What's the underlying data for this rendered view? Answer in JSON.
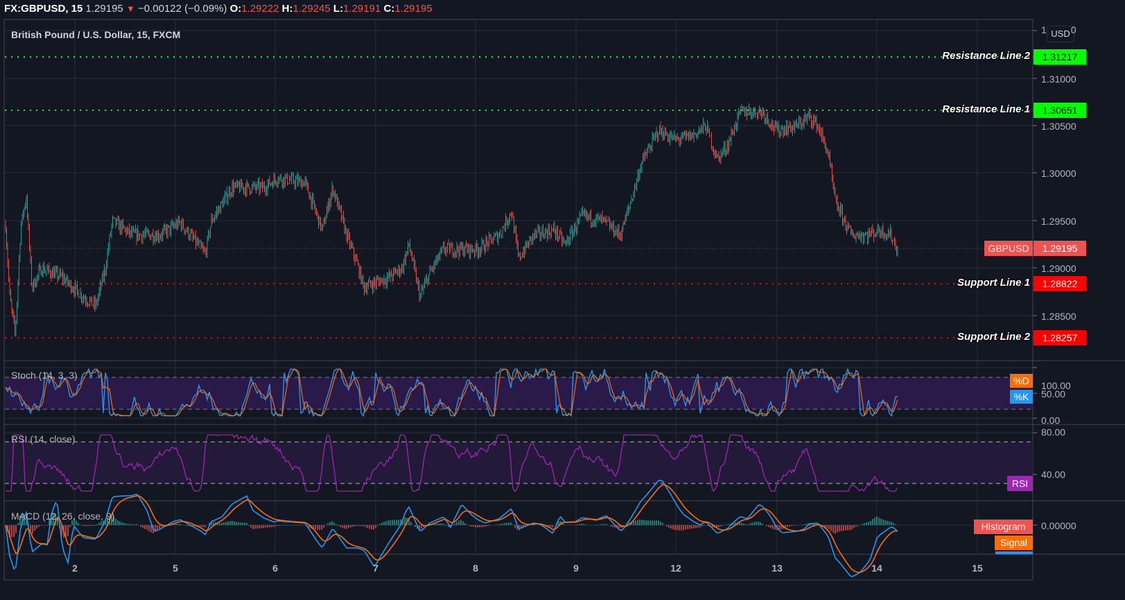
{
  "header": {
    "symbol": "FX:GBPUSD, 15",
    "last": "1.29195",
    "direction_icon": "▼",
    "change": "−0.00122 (−0.09%)",
    "open_label": "O:",
    "open": "1.29222",
    "high_label": "H:",
    "high": "1.29245",
    "low_label": "L:",
    "low": "1.29191",
    "close_label": "C:",
    "close": "1.29195"
  },
  "main_pane": {
    "title": "British Pound / U.S. Dollar, 15, FXCM",
    "currency_button": "USD",
    "y_ticks": [
      "1.31000",
      "1.30500",
      "1.30000",
      "1.29500",
      "1.29000",
      "1.28500"
    ],
    "top_tick_partial": "1",
    "top_tick_partial_end": "0",
    "price_tag": {
      "label": "GBPUSD",
      "value": "1.29195",
      "color": "#ef5350"
    },
    "levels": [
      {
        "label": "Resistance Line 2",
        "value": "1.31217",
        "color": "#00ff00"
      },
      {
        "label": "Resistance Line 1",
        "value": "1.30651",
        "color": "#00ff00"
      },
      {
        "label": "Support Line 1",
        "value": "1.28822",
        "color": "#ff0000"
      },
      {
        "label": "Support Line 2",
        "value": "1.28257",
        "color": "#ff0000"
      }
    ]
  },
  "stoch_pane": {
    "title": "Stoch (14, 3, 3)",
    "y_ticks": [
      "100.00",
      "50.00",
      "0.00"
    ],
    "tags": [
      {
        "label": "%D",
        "color": "#ff6d00"
      },
      {
        "label": "%K",
        "color": "#2196f3"
      }
    ]
  },
  "rsi_pane": {
    "title": "RSI (14, close)",
    "y_ticks": [
      "80.00",
      "40.00"
    ],
    "tag": {
      "label": "RSI",
      "color": "#9c27b0"
    }
  },
  "macd_pane": {
    "title": "MACD (12, 26, close, 9)",
    "y_ticks": [
      "0.00000"
    ],
    "tags": [
      {
        "label": "Histogram",
        "color": "#ef5350"
      },
      {
        "label": "Signal",
        "color": "#ff6d00"
      },
      {
        "label": "",
        "color": "#2196f3"
      }
    ]
  },
  "x_axis": {
    "ticks": [
      "2",
      "5",
      "6",
      "7",
      "8",
      "9",
      "12",
      "13",
      "14",
      "15"
    ]
  },
  "colors": {
    "background": "#131722",
    "grid": "#2a2e39",
    "up": "#26a69a",
    "down": "#ef5350",
    "stoch_band": "#2a1a4a",
    "rsi_band": "#231a3a"
  },
  "chart_data": {
    "type": "candlestick",
    "title": "British Pound / U.S. Dollar, 15, FXCM",
    "symbol": "FX:GBPUSD",
    "interval": "15",
    "xlabel": "",
    "ylabel": "USD",
    "ylim": [
      1.282,
      1.314
    ],
    "x_ticks": [
      "2",
      "5",
      "6",
      "7",
      "8",
      "9",
      "12",
      "13",
      "14",
      "15"
    ],
    "approx_close_path": {
      "x": [
        "1",
        "1",
        "2",
        "2",
        "5",
        "5",
        "6",
        "6",
        "7",
        "7",
        "8",
        "8",
        "9",
        "9",
        "12",
        "12",
        "13",
        "13",
        "14",
        "14"
      ],
      "close": [
        1.294,
        1.29,
        1.289,
        1.286,
        1.294,
        1.292,
        1.299,
        1.298,
        1.288,
        1.287,
        1.291,
        1.293,
        1.294,
        1.295,
        1.304,
        1.303,
        1.3065,
        1.305,
        1.296,
        1.29195
      ]
    },
    "horizontal_lines": [
      {
        "name": "Resistance Line 2",
        "value": 1.31217
      },
      {
        "name": "Resistance Line 1",
        "value": 1.30651
      },
      {
        "name": "Support Line 1",
        "value": 1.28822
      },
      {
        "name": "Support Line 2",
        "value": 1.28257
      }
    ],
    "last_price": 1.29195,
    "ohlc_last": {
      "open": 1.29222,
      "high": 1.29245,
      "low": 1.29191,
      "close": 1.29195
    },
    "change": -0.00122,
    "change_pct": -0.09,
    "indicators": [
      {
        "name": "Stoch (14, 3, 3)",
        "bands": [
          20,
          80
        ],
        "ylim": [
          0,
          100
        ],
        "series": [
          "%K",
          "%D"
        ]
      },
      {
        "name": "RSI (14, close)",
        "bands": [
          30,
          70
        ],
        "ylim": [
          20,
          80
        ],
        "series": [
          "RSI"
        ]
      },
      {
        "name": "MACD (12, 26, close, 9)",
        "series": [
          "Histogram",
          "MACD",
          "Signal"
        ],
        "zero": 0
      }
    ]
  }
}
